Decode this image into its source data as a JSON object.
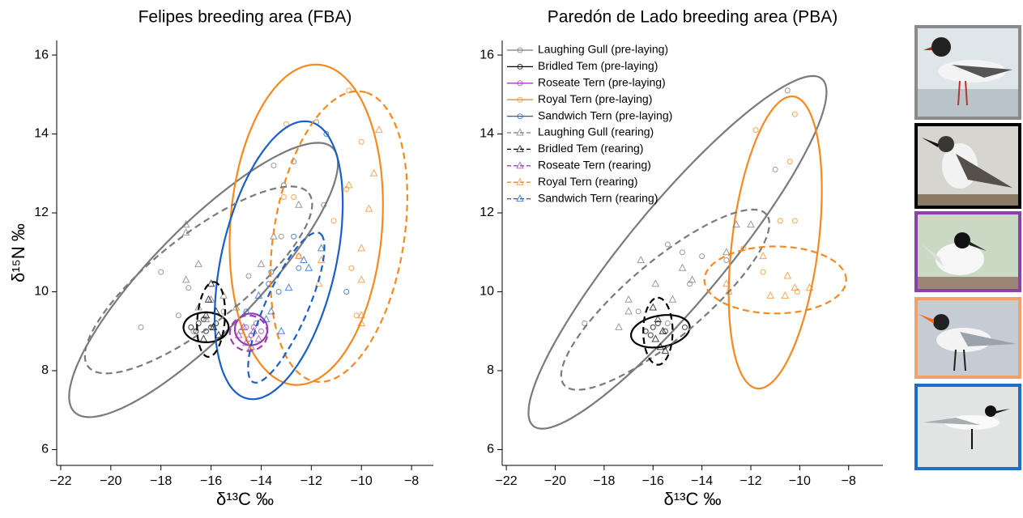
{
  "chart_data": [
    {
      "type": "scatter",
      "title": "Felipes breeding area (FBA)",
      "xlabel": "δ¹³C ‰",
      "ylabel": "δ¹⁵N ‰",
      "xlim": [
        -22.16,
        -7.13
      ],
      "ylim": [
        5.6,
        16.37
      ],
      "xticks": [
        {
          "value": -22,
          "label": "−22"
        },
        {
          "value": -20,
          "label": "−20"
        },
        {
          "value": -18,
          "label": "−18"
        },
        {
          "value": -16,
          "label": "−16"
        },
        {
          "value": -14,
          "label": "−14"
        },
        {
          "value": -12,
          "label": "−12"
        },
        {
          "value": -10,
          "label": "−10"
        },
        {
          "value": -8,
          "label": "−8"
        }
      ],
      "yticks": [
        6,
        8,
        10,
        12,
        14,
        16
      ],
      "series": [
        {
          "color": "#7a7a7a",
          "marker": "circle",
          "dashed": false,
          "x": [
            -18.8,
            -18,
            -17.3,
            -16.9,
            -16.7,
            -14.5,
            -13.5,
            -12.7,
            -11.8,
            -11.5,
            -13.2,
            -15.5
          ],
          "y": [
            9.1,
            10.5,
            9.4,
            10.1,
            9.0,
            10.4,
            13.2,
            13.3,
            14.3,
            12.2,
            11.4,
            9.5
          ],
          "ellipse": {
            "cx": -16.3,
            "cy": 10.3,
            "ax": 5.15,
            "ay": 3.35,
            "bx": 1.5,
            "by": -0.93
          }
        },
        {
          "color": "#000000",
          "marker": "circle",
          "dashed": false,
          "x": [
            -16.8,
            -16.5,
            -16.2,
            -16,
            -15.8,
            -16.6,
            -16.3
          ],
          "y": [
            9.1,
            9.2,
            9.0,
            9.1,
            9.2,
            9.0,
            9.3
          ],
          "ellipse": {
            "cx": -16.2,
            "cy": 9.1,
            "ax": 0.9,
            "ay": 0,
            "bx": 0,
            "by": 0.38
          }
        },
        {
          "color": "#9b3fb5",
          "marker": "circle",
          "dashed": false,
          "x": [
            -14.8,
            -14.6,
            -14.4,
            -14.2,
            -14.0,
            -14.5,
            -14.3
          ],
          "y": [
            9.0,
            9.1,
            8.9,
            9.2,
            9.0,
            8.8,
            9.1
          ],
          "ellipse": {
            "cx": -14.4,
            "cy": 9.05,
            "ax": 0.65,
            "ay": 0,
            "bx": 0,
            "by": 0.4
          }
        },
        {
          "color": "#f5891f",
          "marker": "circle",
          "dashed": false,
          "x": [
            -13,
            -10.5,
            -12.7,
            -13.1,
            -12.5,
            -10.6,
            -10.4,
            -10.2,
            -10,
            -11.1
          ],
          "y": [
            14.25,
            15.1,
            12.4,
            12.4,
            10.9,
            12.6,
            10.6,
            9.4,
            13.8,
            11.8
          ],
          "ellipse": {
            "cx": -12.2,
            "cy": 11.7,
            "ax": 0.6,
            "ay": 4.05,
            "bx": 3.0,
            "by": -0.3
          }
        },
        {
          "color": "#1a5fc7",
          "marker": "circle",
          "dashed": false,
          "x": [
            -11.4,
            -13.1,
            -12.7,
            -13.6,
            -13.7,
            -12.5,
            -10.6,
            -14.6,
            -13.3
          ],
          "y": [
            14,
            12.7,
            11.4,
            10.5,
            10.2,
            10.6,
            10,
            9.5,
            10.0
          ],
          "ellipse": {
            "cx": -13.3,
            "cy": 10.8,
            "ax": 1.3,
            "ay": 3.5,
            "bx": 2.2,
            "by": -0.4
          }
        },
        {
          "color": "#7a7a7a",
          "marker": "triangle",
          "dashed": true,
          "x": [
            -17,
            -17,
            -16.5,
            -17,
            -15.5,
            -16.5,
            -16,
            -12.5,
            -13.5,
            -14,
            -15,
            -16.2
          ],
          "y": [
            11.7,
            11.5,
            10.7,
            10.3,
            9.9,
            9.6,
            9.8,
            12.2,
            11.4,
            10.7,
            9.6,
            9.3
          ],
          "ellipse": {
            "cx": -16.5,
            "cy": 10.3,
            "ax": 4.4,
            "ay": 2.2,
            "bx": 1.1,
            "by": -0.88
          }
        },
        {
          "color": "#000000",
          "marker": "triangle",
          "dashed": true,
          "x": [
            -16,
            -16.1,
            -15.8,
            -16.2,
            -15.9,
            -15.7,
            -16.3
          ],
          "y": [
            10.2,
            9.8,
            9.5,
            9.4,
            9.1,
            8.9,
            8.8
          ],
          "ellipse": {
            "cx": -16,
            "cy": 9.3,
            "ax": 0.1,
            "ay": 0.95,
            "bx": 0.55,
            "by": 0
          }
        },
        {
          "color": "#9b3fb5",
          "marker": "triangle",
          "dashed": true,
          "x": [
            -14.9,
            -14.6,
            -14.3,
            -14.1,
            -14.7,
            -14.4
          ],
          "y": [
            8.9,
            8.7,
            9.0,
            8.8,
            9.1,
            8.6
          ],
          "ellipse": {
            "cx": -14.5,
            "cy": 8.95,
            "ax": 0.75,
            "ay": 0,
            "bx": 0,
            "by": 0.45
          }
        },
        {
          "color": "#f5891f",
          "marker": "triangle",
          "dashed": true,
          "x": [
            -9.3,
            -9.5,
            -9.7,
            -10.5,
            -10,
            -10,
            -10,
            -10,
            -11.6,
            -11.7,
            -12.5
          ],
          "y": [
            14.1,
            13,
            12.1,
            12.7,
            11.1,
            10.3,
            9.4,
            9.2,
            10.8,
            10.2,
            10.9
          ],
          "ellipse": {
            "cx": -10.9,
            "cy": 11.4,
            "ax": 1.1,
            "ay": 3.65,
            "bx": 2.5,
            "by": -0.5
          }
        },
        {
          "color": "#1a5fc7",
          "marker": "triangle",
          "dashed": true,
          "x": [
            -14.1,
            -13.6,
            -13.2,
            -12.1,
            -12.3,
            -12.9,
            -11.6,
            -13.8
          ],
          "y": [
            9.9,
            9.5,
            9.0,
            10.6,
            10.8,
            10.1,
            11.1,
            9.3
          ],
          "ellipse": {
            "cx": -13,
            "cy": 9.6,
            "ax": 1.4,
            "ay": 1.85,
            "bx": 0.6,
            "by": -0.45
          }
        }
      ]
    },
    {
      "type": "scatter",
      "title": "Paredón de Lado breeding area (PBA)",
      "xlabel": "δ¹³C ‰",
      "xlim": [
        -22.17,
        -6.6
      ],
      "ylim": [
        5.6,
        16.37
      ],
      "xticks": [
        {
          "value": -22,
          "label": "−22"
        },
        {
          "value": -20,
          "label": "−20"
        },
        {
          "value": -18,
          "label": "−18"
        },
        {
          "value": -16,
          "label": "−16"
        },
        {
          "value": -14,
          "label": "−14"
        },
        {
          "value": -12,
          "label": "−12"
        },
        {
          "value": -10,
          "label": "−10"
        },
        {
          "value": -8,
          "label": "−8"
        }
      ],
      "yticks": [
        6,
        8,
        10,
        12,
        14,
        16
      ],
      "series": [
        {
          "name": "Laughing Gull (pre-laying)",
          "color": "#7a7a7a",
          "marker": "circle",
          "dashed": false,
          "x": [
            -18.8,
            -16.6,
            -15.4,
            -14.8,
            -14,
            -13,
            -11,
            -10.5,
            -14.5,
            -15.4
          ],
          "y": [
            9.2,
            9.5,
            11.2,
            11,
            10.9,
            10.8,
            13.1,
            15.1,
            10.2,
            9.2
          ],
          "ellipse": {
            "cx": -15,
            "cy": 11,
            "ax": 5.9,
            "ay": 4.4,
            "bx": 1.53,
            "by": -0.79
          }
        },
        {
          "name": "Bridled Tem (pre-laying)",
          "color": "#000000",
          "marker": "circle",
          "dashed": false,
          "x": [
            -16.3,
            -16,
            -15.8,
            -15.5,
            -14.7,
            -16.1
          ],
          "y": [
            9.0,
            9.1,
            9.2,
            9.0,
            9.1,
            8.9
          ],
          "ellipse": {
            "cx": -15.7,
            "cy": 9.0,
            "ax": 1.2,
            "ay": 0.1,
            "bx": 0,
            "by": 0.4
          }
        },
        {
          "name": "Roseate Tern (pre-laying)",
          "color": "#9b3fb5",
          "marker": "circle",
          "dashed": false,
          "x": [],
          "y": []
        },
        {
          "name": "Royal Tern (pre-laying)",
          "color": "#f5891f",
          "marker": "circle",
          "dashed": false,
          "x": [
            -11.8,
            -10.2,
            -10.4,
            -10.8,
            -10.2,
            -11.5,
            -10.1,
            -12.3
          ],
          "y": [
            14.1,
            14.5,
            13.3,
            11.8,
            11.8,
            10.5,
            10.0,
            11.1
          ],
          "ellipse": {
            "cx": -11,
            "cy": 11.25,
            "ax": 0.75,
            "ay": 3.7,
            "bx": 1.75,
            "by": -0.15
          }
        },
        {
          "name": "Sandwich Tern (pre-laying)",
          "color": "#1a5fc7",
          "marker": "circle",
          "dashed": false,
          "x": [],
          "y": []
        },
        {
          "name": "Laughing Gull (rearing)",
          "color": "#7a7a7a",
          "marker": "triangle",
          "dashed": true,
          "x": [
            -17.4,
            -17,
            -16.5,
            -15.9,
            -14.8,
            -14.4,
            -13,
            -12.6,
            -12,
            -15.2,
            -17
          ],
          "y": [
            9.1,
            9.8,
            10.8,
            10.2,
            10.6,
            10.3,
            11,
            11.7,
            11.7,
            9.8,
            9.5
          ],
          "ellipse": {
            "cx": -15.5,
            "cy": 9.8,
            "ax": 4.2,
            "ay": 2.1,
            "bx": 0.7,
            "by": -0.9
          }
        },
        {
          "name": "Bridled Tem (rearing)",
          "color": "#000000",
          "marker": "triangle",
          "dashed": true,
          "x": [
            -16,
            -15.8,
            -15.6,
            -15.9,
            -15.7,
            -15.5
          ],
          "y": [
            9.6,
            9.3,
            9.0,
            8.8,
            8.6,
            8.5
          ],
          "ellipse": {
            "cx": -15.8,
            "cy": 9.0,
            "ax": 0,
            "ay": 0.85,
            "bx": 0.6,
            "by": 0
          }
        },
        {
          "name": "Roseate Tern (rearing)",
          "color": "#9b3fb5",
          "marker": "triangle",
          "dashed": true,
          "x": [],
          "y": []
        },
        {
          "name": "Royal Tern (rearing)",
          "color": "#f5891f",
          "marker": "triangle",
          "dashed": true,
          "x": [
            -13,
            -11.5,
            -11.2,
            -10.5,
            -10.2,
            -9.6,
            -12.9,
            -10.6
          ],
          "y": [
            10.2,
            10.9,
            9.9,
            10.4,
            10.1,
            10.1,
            10,
            9.9
          ],
          "ellipse": {
            "cx": -11,
            "cy": 10.3,
            "ax": 2.9,
            "ay": 0,
            "bx": 0,
            "by": 0.85
          }
        },
        {
          "name": "Sandwich Tern (rearing)",
          "color": "#1a5fc7",
          "marker": "triangle",
          "dashed": true,
          "x": [],
          "y": []
        }
      ]
    }
  ]
}
